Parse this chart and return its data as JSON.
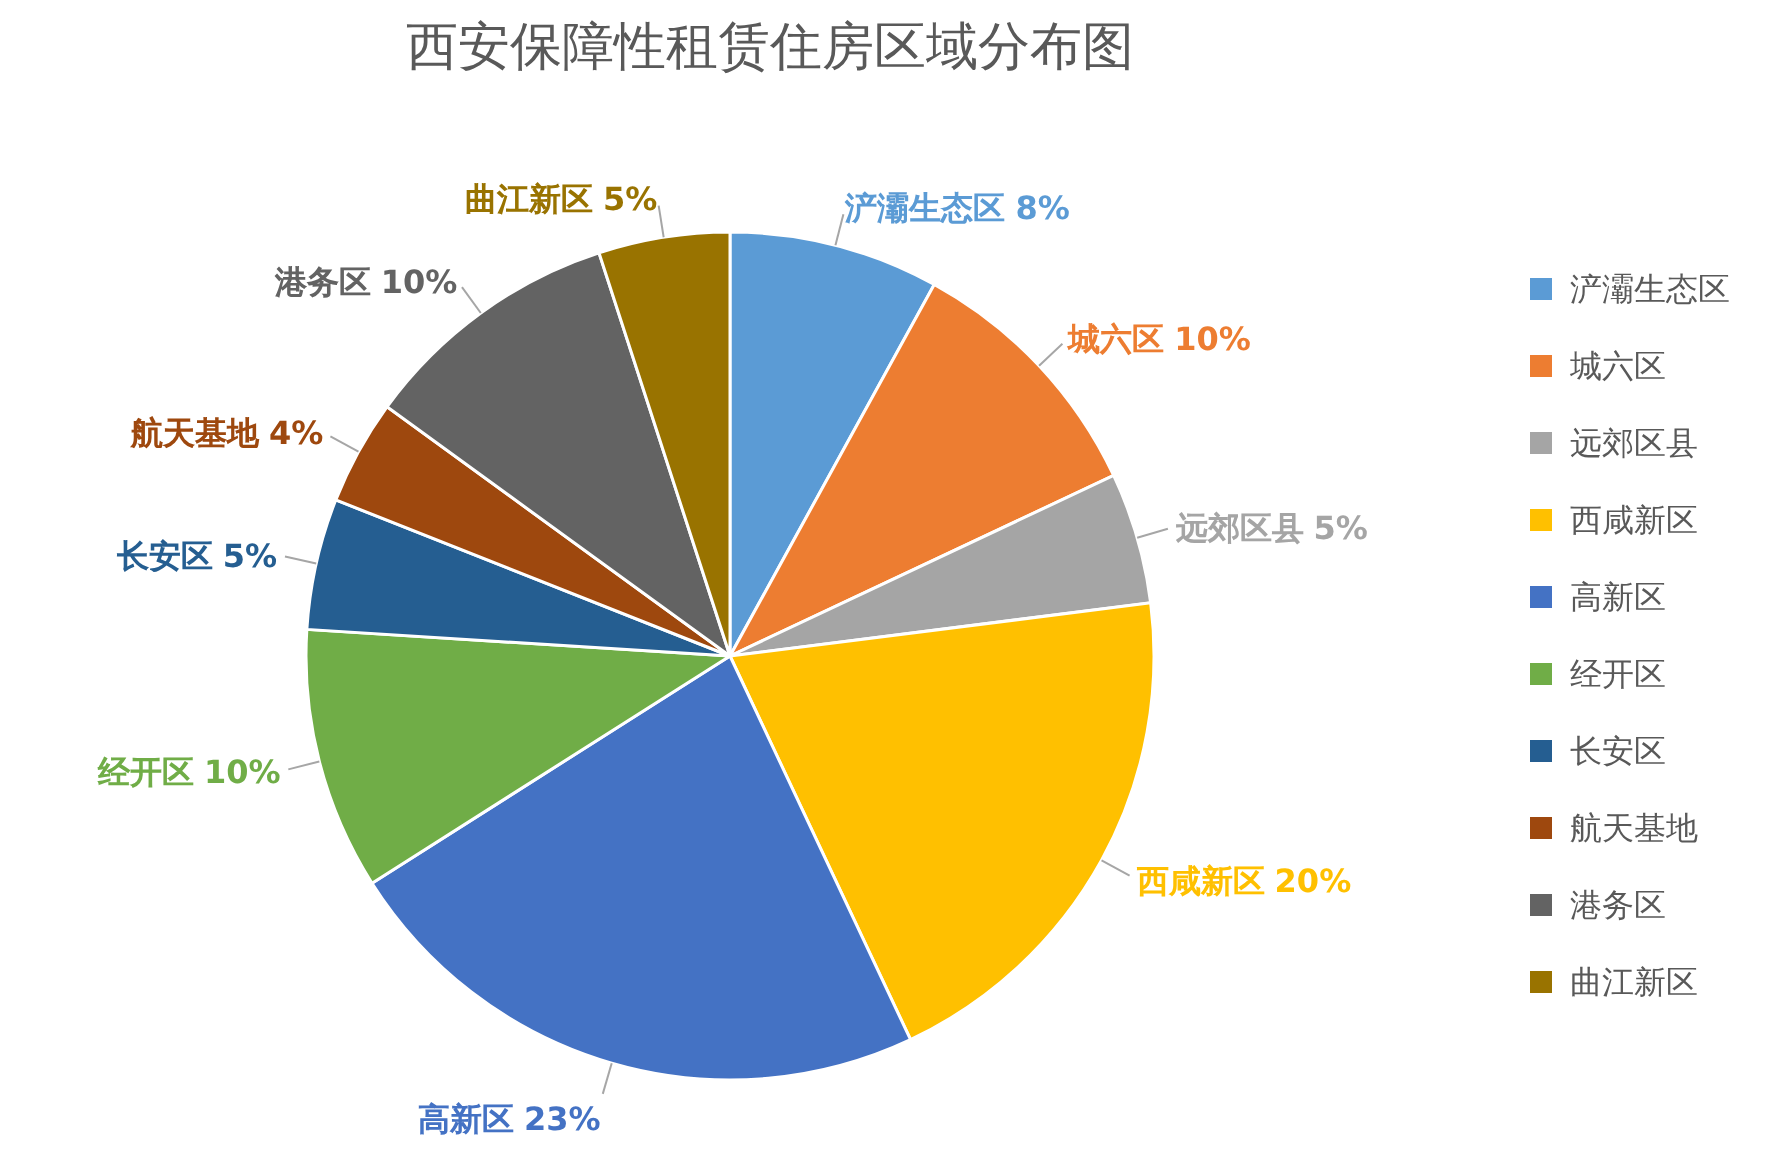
{
  "chart_data": {
    "type": "pie",
    "title": "西安保障性租赁住房区域分布图",
    "categories": [
      "浐灞生态区",
      "城六区",
      "远郊区县",
      "西咸新区",
      "高新区",
      "经开区",
      "长安区",
      "航天基地",
      "港务区",
      "曲江新区"
    ],
    "values": [
      8,
      10,
      5,
      20,
      23,
      10,
      5,
      4,
      10,
      5
    ],
    "colors": [
      "#5b9bd5",
      "#ed7d31",
      "#a5a5a5",
      "#ffc000",
      "#4472c4",
      "#70ad47",
      "#255e91",
      "#9e480e",
      "#636363",
      "#997300"
    ],
    "value_labels": [
      "8%",
      "10%",
      "5%",
      "20%",
      "23%",
      "10%",
      "5%",
      "4%",
      "10%",
      "5%"
    ],
    "legend": "right"
  }
}
